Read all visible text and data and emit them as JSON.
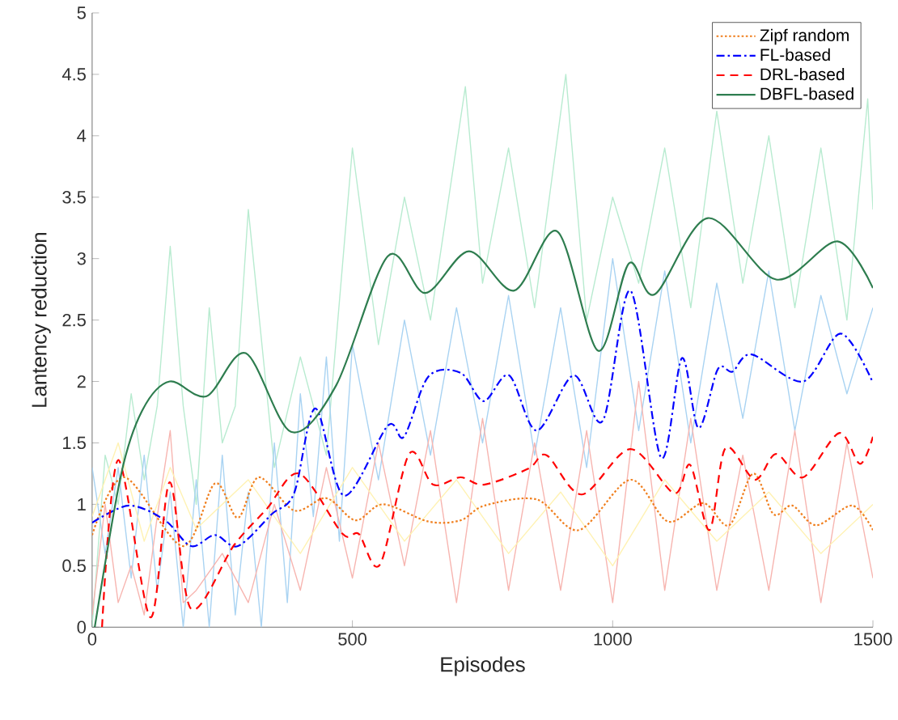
{
  "chart_data": {
    "type": "line",
    "xlabel": "Episodes",
    "ylabel": "Lantency reduction",
    "xlim": [
      0,
      1500
    ],
    "ylim": [
      0,
      5
    ],
    "xticks": [
      0,
      500,
      1000,
      1500
    ],
    "yticks": [
      0,
      0.5,
      1,
      1.5,
      2,
      2.5,
      3,
      3.5,
      4,
      4.5,
      5
    ],
    "grid": false,
    "legend": "top right",
    "marker": "none",
    "series": [
      {
        "color": "#b8ebd0",
        "line_style": "solid",
        "x": [
          0,
          25,
          50,
          75,
          100,
          125,
          150,
          175,
          200,
          225,
          250,
          275,
          300,
          350,
          400,
          450,
          500,
          550,
          600,
          650,
          717,
          750,
          800,
          850,
          910,
          950,
          1000,
          1050,
          1100,
          1150,
          1200,
          1250,
          1300,
          1350,
          1400,
          1450,
          1490,
          1500
        ],
        "values": [
          0,
          1.4,
          1.0,
          1.9,
          1.2,
          1.8,
          3.1,
          1.8,
          1.0,
          2.6,
          1.5,
          1.8,
          3.4,
          1.3,
          2.2,
          1.4,
          3.9,
          2.3,
          3.5,
          2.5,
          4.4,
          2.8,
          3.9,
          2.6,
          4.5,
          2.5,
          3.5,
          2.8,
          3.9,
          2.6,
          4.2,
          2.8,
          4.0,
          2.6,
          3.9,
          2.5,
          4.3,
          3.4
        ]
      },
      {
        "color": "#a9d3f2",
        "line_style": "solid",
        "x": [
          0,
          25,
          50,
          75,
          100,
          125,
          150,
          175,
          200,
          225,
          250,
          275,
          300,
          325,
          350,
          375,
          400,
          425,
          450,
          475,
          500,
          550,
          600,
          650,
          700,
          750,
          800,
          850,
          900,
          950,
          1000,
          1050,
          1100,
          1150,
          1200,
          1250,
          1300,
          1350,
          1400,
          1450,
          1500
        ],
        "values": [
          1.3,
          0.6,
          1.3,
          0.4,
          1.4,
          0.3,
          1.1,
          0.0,
          1.2,
          0.0,
          1.4,
          0.1,
          1.1,
          0.0,
          1.5,
          0.2,
          1.9,
          0.9,
          2.2,
          0.7,
          2.3,
          1.2,
          2.5,
          1.4,
          2.6,
          1.5,
          2.7,
          1.4,
          2.6,
          1.3,
          3.0,
          1.6,
          2.9,
          1.5,
          2.8,
          1.7,
          2.9,
          1.6,
          2.7,
          1.9,
          2.6
        ]
      },
      {
        "color": "#f7b5b0",
        "line_style": "solid",
        "x": [
          0,
          25,
          50,
          75,
          100,
          125,
          150,
          175,
          200,
          250,
          300,
          350,
          400,
          450,
          500,
          550,
          600,
          650,
          700,
          750,
          800,
          850,
          900,
          950,
          1000,
          1050,
          1100,
          1150,
          1200,
          1250,
          1300,
          1350,
          1400,
          1450,
          1500
        ],
        "values": [
          0.1,
          1.0,
          0.2,
          0.5,
          0.1,
          0.9,
          1.6,
          0.2,
          0.3,
          0.6,
          0.2,
          1.0,
          0.3,
          1.3,
          0.4,
          1.5,
          0.5,
          1.6,
          0.2,
          1.7,
          0.3,
          1.5,
          0.3,
          1.6,
          0.2,
          2.0,
          0.3,
          1.7,
          0.3,
          1.4,
          0.3,
          1.6,
          0.2,
          1.5,
          0.4
        ]
      },
      {
        "color": "#fff2b3",
        "line_style": "solid",
        "x": [
          0,
          50,
          100,
          150,
          200,
          300,
          400,
          500,
          600,
          700,
          800,
          900,
          1000,
          1100,
          1200,
          1300,
          1400,
          1500
        ],
        "values": [
          0.9,
          1.5,
          0.7,
          1.3,
          0.8,
          1.2,
          0.6,
          1.3,
          0.7,
          1.2,
          0.6,
          1.1,
          0.5,
          1.2,
          0.7,
          1.1,
          0.6,
          1.0
        ]
      },
      {
        "name": "Zipf random",
        "color": "#f07f1e",
        "line_style": "dotted",
        "x": [
          0,
          62,
          174,
          236,
          280,
          320,
          388,
          450,
          506,
          559,
          646,
          708,
          754,
          854,
          935,
          1034,
          1106,
          1174,
          1224,
          1270,
          1309,
          1345,
          1391,
          1460,
          1500
        ],
        "values": [
          0.75,
          1.22,
          0.66,
          1.17,
          0.89,
          1.22,
          0.95,
          1.05,
          0.87,
          1.0,
          0.86,
          0.87,
          0.99,
          1.04,
          0.79,
          1.2,
          0.86,
          1.01,
          0.83,
          1.25,
          0.92,
          0.99,
          0.83,
          0.99,
          0.79
        ]
      },
      {
        "name": "FL-based",
        "color": "#0000ff",
        "line_style": "dashdot",
        "x": [
          0,
          71,
          140,
          190,
          236,
          280,
          345,
          388,
          429,
          484,
          568,
          599,
          646,
          708,
          752,
          801,
          854,
          925,
          981,
          1034,
          1093,
          1133,
          1165,
          1202,
          1230,
          1267,
          1366,
          1438,
          1500
        ],
        "values": [
          0.85,
          0.99,
          0.87,
          0.66,
          0.75,
          0.66,
          0.92,
          1.09,
          1.78,
          1.07,
          1.64,
          1.55,
          2.04,
          2.07,
          1.84,
          2.05,
          1.6,
          2.05,
          1.68,
          2.74,
          1.38,
          2.19,
          1.62,
          2.1,
          2.08,
          2.22,
          2.0,
          2.39,
          1.99
        ]
      },
      {
        "name": "DRL-based",
        "color": "#ff0000",
        "line_style": "dashed",
        "x": [
          19,
          50,
          112,
          149,
          190,
          273,
          335,
          398,
          481,
          512,
          553,
          609,
          655,
          708,
          753,
          838,
          873,
          941,
          1034,
          1118,
          1149,
          1186,
          1217,
          1273,
          1314,
          1366,
          1435,
          1475,
          1500
        ],
        "values": [
          0.0,
          1.36,
          0.08,
          1.18,
          0.15,
          0.67,
          0.96,
          1.25,
          0.76,
          0.76,
          0.51,
          1.41,
          1.16,
          1.22,
          1.16,
          1.29,
          1.4,
          1.08,
          1.45,
          1.09,
          1.32,
          0.79,
          1.46,
          1.2,
          1.41,
          1.22,
          1.58,
          1.33,
          1.55
        ]
      },
      {
        "name": "DBFL-based",
        "color": "#2e7d4f",
        "line_style": "solid",
        "x": [
          5,
          56,
          97,
          149,
          220,
          295,
          382,
          469,
          568,
          640,
          724,
          811,
          894,
          972,
          1031,
          1081,
          1183,
          1314,
          1432,
          1500
        ],
        "values": [
          0,
          1.25,
          1.77,
          2.0,
          1.88,
          2.23,
          1.59,
          1.97,
          3.02,
          2.72,
          3.06,
          2.74,
          3.22,
          2.25,
          2.96,
          2.71,
          3.33,
          2.83,
          3.14,
          2.76
        ]
      }
    ]
  }
}
